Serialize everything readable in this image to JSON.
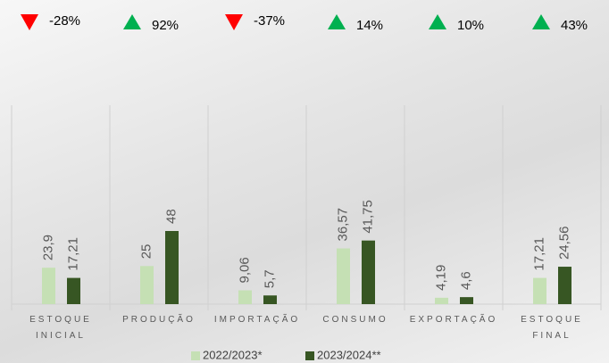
{
  "chart_data": {
    "type": "bar",
    "categories": [
      "ESTOQUE INICIAL",
      "PRODUÇÃO",
      "IMPORTAÇÃO",
      "CONSUMO",
      "EXPORTAÇÃO",
      "ESTOQUE FINAL"
    ],
    "series": [
      {
        "name": "2022/2023*",
        "color": "#c5e0b4",
        "values": [
          23.9,
          25,
          9.06,
          36.57,
          4.19,
          17.21
        ],
        "value_labels": [
          "23,9",
          "25",
          "9,06",
          "36,57",
          "4,19",
          "17,21"
        ]
      },
      {
        "name": "2023/2024**",
        "color": "#375623",
        "values": [
          17.21,
          48,
          5.7,
          41.75,
          4.6,
          24.56
        ],
        "value_labels": [
          "17,21",
          "48",
          "5,7",
          "41,75",
          "4,6",
          "24,56"
        ]
      }
    ],
    "changes": {
      "values": [
        -28,
        92,
        -37,
        14,
        10,
        43
      ],
      "value_labels": [
        "-28%",
        "92%",
        "-37%",
        "14%",
        "10%",
        "43%"
      ],
      "up_color": "#00b050",
      "down_color": "#ff0000"
    }
  }
}
